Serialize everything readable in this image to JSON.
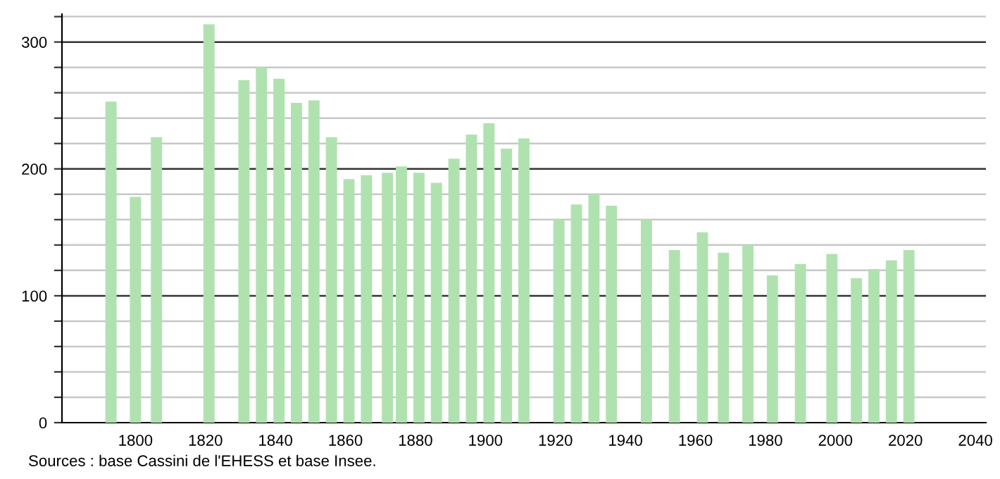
{
  "chart_data": {
    "type": "bar",
    "x": [
      1793,
      1800,
      1806,
      1821,
      1831,
      1836,
      1841,
      1846,
      1851,
      1856,
      1861,
      1866,
      1872,
      1876,
      1881,
      1886,
      1891,
      1896,
      1901,
      1906,
      1911,
      1921,
      1926,
      1931,
      1936,
      1946,
      1954,
      1962,
      1968,
      1975,
      1982,
      1990,
      1999,
      2006,
      2011,
      2016,
      2021
    ],
    "values": [
      253,
      178,
      225,
      314,
      270,
      280,
      271,
      252,
      254,
      225,
      192,
      195,
      197,
      202,
      197,
      189,
      208,
      227,
      236,
      216,
      224,
      160,
      172,
      180,
      171,
      160,
      136,
      150,
      134,
      140,
      116,
      125,
      133,
      114,
      121,
      128,
      136
    ],
    "color": "#b0e2b0",
    "xlim": [
      1779,
      2043
    ],
    "xticks": [
      1800,
      1820,
      1840,
      1860,
      1880,
      1900,
      1920,
      1940,
      1960,
      1980,
      2000,
      2020,
      2040
    ],
    "ylim": [
      0,
      322
    ],
    "yticks": [
      0,
      {
        "value": 20,
        "label": null
      },
      {
        "value": 40,
        "label": null
      },
      {
        "value": 60,
        "label": null
      },
      {
        "value": 80,
        "label": null
      },
      100,
      {
        "value": 120,
        "label": null
      },
      {
        "value": 140,
        "label": null
      },
      {
        "value": 160,
        "label": null
      },
      {
        "value": 180,
        "label": null
      },
      200,
      {
        "value": 220,
        "label": null
      },
      {
        "value": 240,
        "label": null
      },
      {
        "value": 260,
        "label": null
      },
      {
        "value": 280,
        "label": null
      },
      300,
      {
        "value": 320,
        "label": null
      }
    ],
    "grid": "y",
    "annotations": [
      "Sources : base Cassini de l'EHESS et base Insee."
    ]
  }
}
